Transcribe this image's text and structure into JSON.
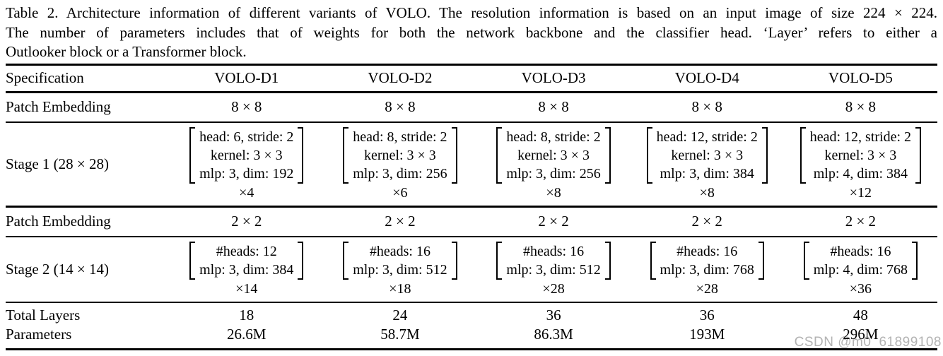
{
  "caption": {
    "line1": "Table 2. Architecture information of different variants of VOLO. The resolution information is based on an input image of size 224 × 224.",
    "line2": "The number of parameters includes that of weights for both the network backbone and the classifier head.  ‘Layer’ refers to either a",
    "line3": "Outlooker block or a Transformer block."
  },
  "table": {
    "headers": [
      "Specification",
      "VOLO-D1",
      "VOLO-D2",
      "VOLO-D3",
      "VOLO-D4",
      "VOLO-D5"
    ],
    "patch_embedding_1": {
      "label": "Patch Embedding",
      "values": [
        "8 × 8",
        "8 × 8",
        "8 × 8",
        "8 × 8",
        "8 × 8"
      ]
    },
    "stage1": {
      "label": "Stage 1 (28 × 28)",
      "cells": [
        {
          "lines": [
            "head: 6, stride: 2",
            "kernel: 3 × 3",
            "mlp: 3, dim: 192"
          ],
          "multiplier": "×4"
        },
        {
          "lines": [
            "head: 8, stride: 2",
            "kernel: 3 × 3",
            "mlp: 3, dim: 256"
          ],
          "multiplier": "×6"
        },
        {
          "lines": [
            "head: 8, stride: 2",
            "kernel: 3 × 3",
            "mlp: 3, dim: 256"
          ],
          "multiplier": "×8"
        },
        {
          "lines": [
            "head: 12, stride: 2",
            "kernel: 3 × 3",
            "mlp: 3, dim: 384"
          ],
          "multiplier": "×8"
        },
        {
          "lines": [
            "head: 12, stride: 2",
            "kernel: 3 × 3",
            "mlp: 4, dim: 384"
          ],
          "multiplier": "×12"
        }
      ]
    },
    "patch_embedding_2": {
      "label": "Patch Embedding",
      "values": [
        "2 × 2",
        "2 × 2",
        "2 × 2",
        "2 × 2",
        "2 × 2"
      ]
    },
    "stage2": {
      "label": "Stage 2 (14 × 14)",
      "cells": [
        {
          "lines": [
            "#heads: 12",
            "mlp: 3, dim: 384"
          ],
          "multiplier": "×14"
        },
        {
          "lines": [
            "#heads: 16",
            "mlp: 3, dim: 512"
          ],
          "multiplier": "×18"
        },
        {
          "lines": [
            "#heads: 16",
            "mlp: 3, dim: 512"
          ],
          "multiplier": "×28"
        },
        {
          "lines": [
            "#heads: 16",
            "mlp: 3, dim: 768"
          ],
          "multiplier": "×28"
        },
        {
          "lines": [
            "#heads: 16",
            "mlp: 4, dim: 768"
          ],
          "multiplier": "×36"
        }
      ]
    },
    "total_layers": {
      "label": "Total Layers",
      "values": [
        "18",
        "24",
        "36",
        "36",
        "48"
      ]
    },
    "parameters": {
      "label": "Parameters",
      "values": [
        "26.6M",
        "58.7M",
        "86.3M",
        "193M",
        "296M"
      ]
    }
  },
  "watermark": {
    "text": "CSDN @m0_61899108",
    "color": "#b3b3b3"
  }
}
